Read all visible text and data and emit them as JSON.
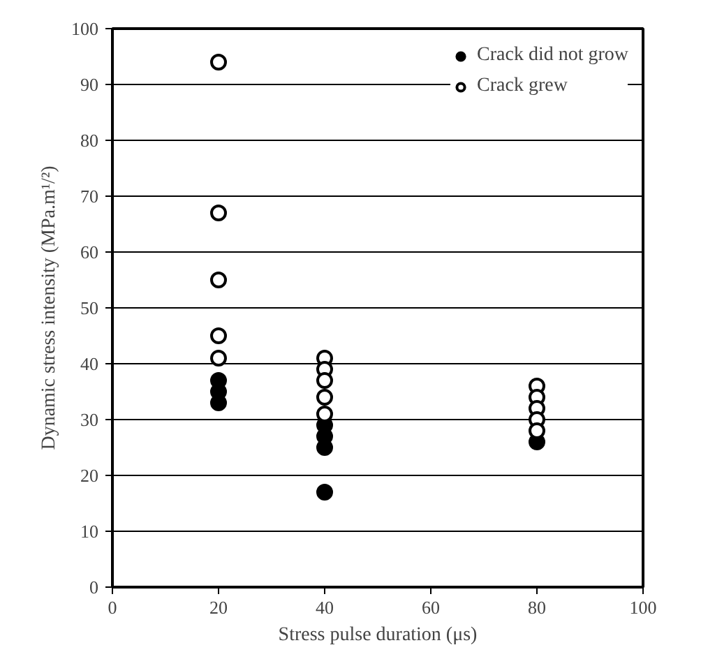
{
  "chart_data": {
    "type": "scatter",
    "xlabel": "Stress pulse duration (μs)",
    "ylabel": "Dynamic stress intensity (MPa.m¹/²)",
    "xlim": [
      0,
      100
    ],
    "xticks": [
      0,
      20,
      40,
      60,
      80,
      100
    ],
    "ylim": [
      0,
      100
    ],
    "yticks": [
      0,
      10,
      20,
      30,
      40,
      50,
      60,
      70,
      80,
      90,
      100
    ],
    "grid": "y",
    "legend": "top right",
    "marker": "circle",
    "series": [
      {
        "name": "Crack did not grow",
        "color": "#000000",
        "x": [
          20,
          20,
          20,
          40,
          40,
          40,
          40,
          80
        ],
        "values": [
          33,
          35,
          37,
          29,
          27,
          25,
          17,
          26
        ]
      },
      {
        "name": "Crack grew",
        "color": "#ffffff",
        "x": [
          20,
          20,
          20,
          20,
          20,
          40,
          40,
          40,
          40,
          40,
          80,
          80,
          80,
          80,
          80
        ],
        "values": [
          94,
          67,
          55,
          45,
          41,
          41,
          39,
          37,
          34,
          31,
          36,
          34,
          32,
          30,
          28
        ]
      }
    ]
  }
}
